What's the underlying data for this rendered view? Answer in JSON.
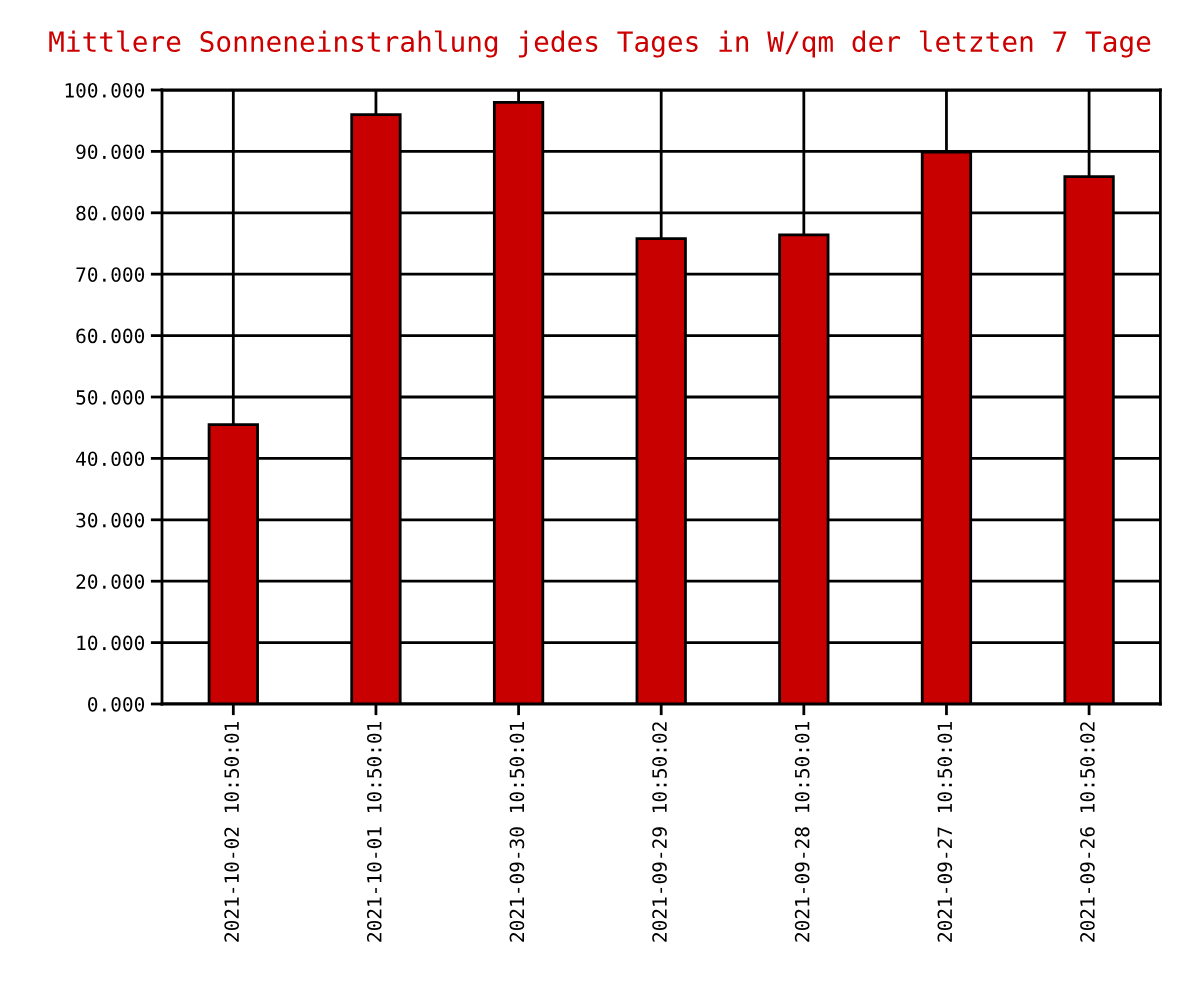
{
  "chart_data": {
    "type": "bar",
    "title": "Mittlere Sonneneinstrahlung jedes Tages in W/qm der letzten 7 Tage",
    "categories": [
      "2021-10-02 10:50:01",
      "2021-10-01 10:50:01",
      "2021-09-30 10:50:01",
      "2021-09-29 10:50:02",
      "2021-09-28 10:50:01",
      "2021-09-27 10:50:01",
      "2021-09-26 10:50:02"
    ],
    "values": [
      45.5,
      96,
      98,
      75.8,
      76.4,
      89.9,
      85.9
    ],
    "color": "#c80000",
    "ylim": [
      0,
      100
    ],
    "yticks": [
      {
        "value": 0,
        "label": "0.000"
      },
      {
        "value": 10,
        "label": "10.000"
      },
      {
        "value": 20,
        "label": "20.000"
      },
      {
        "value": 30,
        "label": "30.000"
      },
      {
        "value": 40,
        "label": "40.000"
      },
      {
        "value": 50,
        "label": "50.000"
      },
      {
        "value": 60,
        "label": "60.000"
      },
      {
        "value": 70,
        "label": "70.000"
      },
      {
        "value": 80,
        "label": "80.000"
      },
      {
        "value": 90,
        "label": "90.000"
      },
      {
        "value": 100,
        "label": "100.000"
      }
    ],
    "grid": true
  }
}
